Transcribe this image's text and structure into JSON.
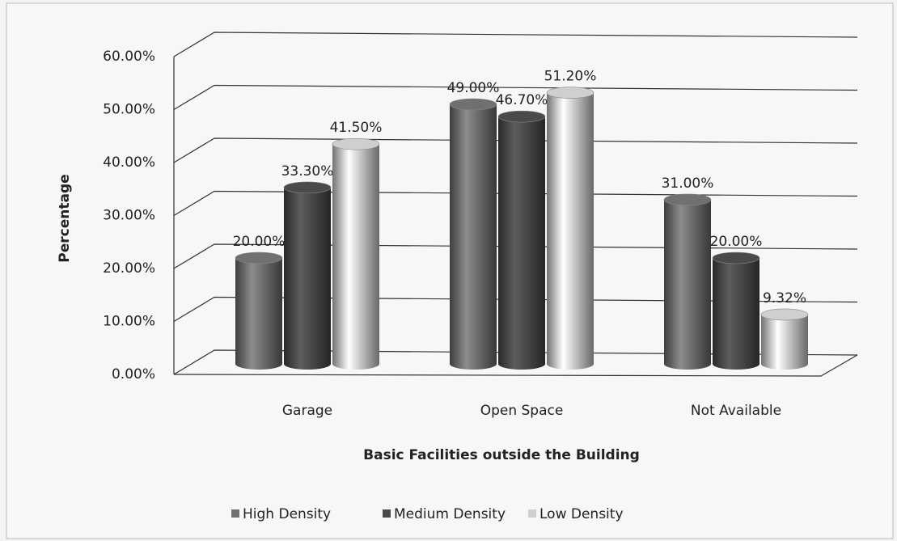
{
  "chart_data": {
    "type": "bar",
    "x_label": "Basic Facilities outside the Building",
    "y_label": "Percentage",
    "categories": [
      "Garage",
      "Open Space",
      "Not Available"
    ],
    "series": [
      {
        "name": "High Density",
        "color": "#707070",
        "values": [
          20,
          49,
          31
        ],
        "value_labels": [
          "20.00%",
          "49.00%",
          "31.00%"
        ]
      },
      {
        "name": "Medium Density",
        "color": "#4a4a4a",
        "values": [
          33.3,
          46.7,
          20
        ],
        "value_labels": [
          "33.30%",
          "46.70%",
          "20.00%"
        ]
      },
      {
        "name": "Low Density",
        "color": "#cfcfcf",
        "values": [
          41.5,
          51.2,
          9.32
        ],
        "value_labels": [
          "41.50%",
          "51.20%",
          "9.32%"
        ]
      }
    ],
    "ylim": [
      0,
      60
    ],
    "yticks": [
      {
        "value": 0,
        "label": "0.00%"
      },
      {
        "value": 10,
        "label": "10.00%"
      },
      {
        "value": 20,
        "label": "20.00%"
      },
      {
        "value": 30,
        "label": "30.00%"
      },
      {
        "value": 40,
        "label": "40.00%"
      },
      {
        "value": 50,
        "label": "50.00%"
      },
      {
        "value": 60,
        "label": "60.00%"
      }
    ],
    "grid": true,
    "legend": "bottom"
  }
}
